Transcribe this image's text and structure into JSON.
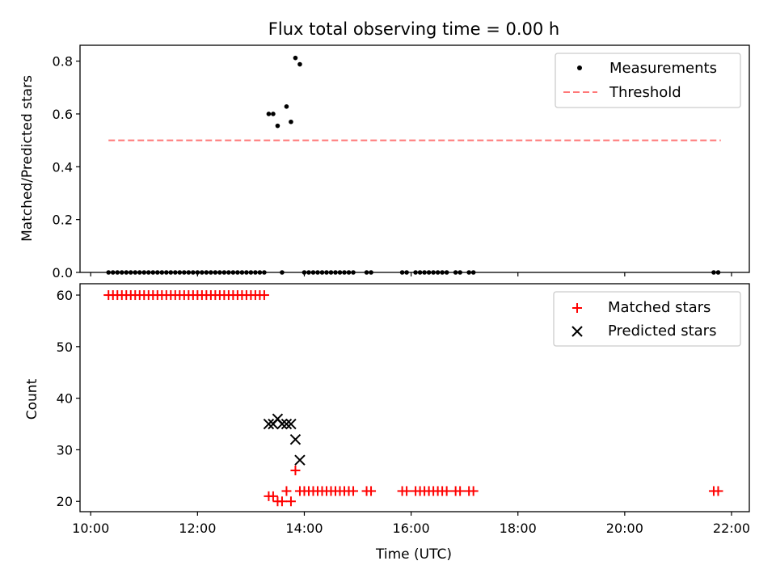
{
  "chart_data": [
    {
      "type": "scatter",
      "title": "Flux total observing time = 0.00 h",
      "ylabel": "Matched/Predicted stars",
      "ylim": [
        0.0,
        0.86
      ],
      "yticks": [
        0.0,
        0.2,
        0.4,
        0.6,
        0.8
      ],
      "ytick_labels": [
        "0.0",
        "0.2",
        "0.4",
        "0.6",
        "0.8"
      ],
      "xlim": [
        "09:48",
        "22:20"
      ],
      "xticks": [
        "10:00",
        "12:00",
        "14:00",
        "16:00",
        "18:00",
        "20:00",
        "22:00"
      ],
      "legend_position": "top-right",
      "series": [
        {
          "name": "Measurements",
          "marker": "dot",
          "color": "#000000",
          "x": [
            "10:20",
            "10:25",
            "10:30",
            "10:35",
            "10:40",
            "10:45",
            "10:50",
            "10:55",
            "11:00",
            "11:05",
            "11:10",
            "11:15",
            "11:20",
            "11:25",
            "11:30",
            "11:35",
            "11:40",
            "11:45",
            "11:50",
            "11:55",
            "12:00",
            "12:05",
            "12:10",
            "12:15",
            "12:20",
            "12:25",
            "12:30",
            "12:35",
            "12:40",
            "12:45",
            "12:50",
            "12:55",
            "13:00",
            "13:05",
            "13:10",
            "13:15",
            "13:20",
            "13:25",
            "13:30",
            "13:35",
            "13:40",
            "13:45",
            "13:50",
            "13:55",
            "14:00",
            "14:05",
            "14:10",
            "14:15",
            "14:20",
            "14:25",
            "14:30",
            "14:35",
            "14:40",
            "14:45",
            "14:50",
            "14:55",
            "15:10",
            "15:15",
            "15:50",
            "15:55",
            "16:05",
            "16:10",
            "16:15",
            "16:20",
            "16:25",
            "16:30",
            "16:35",
            "16:40",
            "16:50",
            "16:55",
            "17:05",
            "17:10",
            "21:40",
            "21:45"
          ],
          "y": [
            0,
            0,
            0,
            0,
            0,
            0,
            0,
            0,
            0,
            0,
            0,
            0,
            0,
            0,
            0,
            0,
            0,
            0,
            0,
            0,
            0,
            0,
            0,
            0,
            0,
            0,
            0,
            0,
            0,
            0,
            0,
            0,
            0,
            0,
            0,
            0,
            0.6,
            0.6,
            0.555,
            0,
            0.628,
            0.57,
            0.812,
            0.788,
            0,
            0,
            0,
            0,
            0,
            0,
            0,
            0,
            0,
            0,
            0,
            0,
            0,
            0,
            0,
            0,
            0,
            0,
            0,
            0,
            0,
            0,
            0,
            0,
            0,
            0,
            0,
            0,
            0,
            0
          ]
        },
        {
          "name": "Threshold",
          "type": "line",
          "style": "dashed",
          "color": "#ff7777",
          "x": [
            "10:20",
            "21:48"
          ],
          "y": [
            0.5,
            0.5
          ]
        }
      ]
    },
    {
      "type": "scatter",
      "xlabel": "Time (UTC)",
      "ylabel": "Count",
      "ylim": [
        18,
        62.2
      ],
      "yticks": [
        20,
        30,
        40,
        50,
        60
      ],
      "ytick_labels": [
        "20",
        "30",
        "40",
        "50",
        "60"
      ],
      "xlim": [
        "09:48",
        "22:20"
      ],
      "xticks": [
        "10:00",
        "12:00",
        "14:00",
        "16:00",
        "18:00",
        "20:00",
        "22:00"
      ],
      "xtick_labels": [
        "10:00",
        "12:00",
        "14:00",
        "16:00",
        "18:00",
        "20:00",
        "22:00"
      ],
      "legend_position": "top-right",
      "series": [
        {
          "name": "Matched stars",
          "marker": "plus",
          "color": "#ff0000",
          "x": [
            "10:20",
            "10:25",
            "10:30",
            "10:35",
            "10:40",
            "10:45",
            "10:50",
            "10:55",
            "11:00",
            "11:05",
            "11:10",
            "11:15",
            "11:20",
            "11:25",
            "11:30",
            "11:35",
            "11:40",
            "11:45",
            "11:50",
            "11:55",
            "12:00",
            "12:05",
            "12:10",
            "12:15",
            "12:20",
            "12:25",
            "12:30",
            "12:35",
            "12:40",
            "12:45",
            "12:50",
            "12:55",
            "13:00",
            "13:05",
            "13:10",
            "13:15",
            "13:20",
            "13:25",
            "13:30",
            "13:35",
            "13:40",
            "13:45",
            "13:50",
            "13:55",
            "14:00",
            "14:05",
            "14:10",
            "14:15",
            "14:20",
            "14:25",
            "14:30",
            "14:35",
            "14:40",
            "14:45",
            "14:50",
            "14:55",
            "15:10",
            "15:15",
            "15:50",
            "15:55",
            "16:05",
            "16:10",
            "16:15",
            "16:20",
            "16:25",
            "16:30",
            "16:35",
            "16:40",
            "16:50",
            "16:55",
            "17:05",
            "17:10",
            "21:40",
            "21:45"
          ],
          "y": [
            60,
            60,
            60,
            60,
            60,
            60,
            60,
            60,
            60,
            60,
            60,
            60,
            60,
            60,
            60,
            60,
            60,
            60,
            60,
            60,
            60,
            60,
            60,
            60,
            60,
            60,
            60,
            60,
            60,
            60,
            60,
            60,
            60,
            60,
            60,
            60,
            21,
            21,
            20,
            20,
            22,
            20,
            26,
            22,
            22,
            22,
            22,
            22,
            22,
            22,
            22,
            22,
            22,
            22,
            22,
            22,
            22,
            22,
            22,
            22,
            22,
            22,
            22,
            22,
            22,
            22,
            22,
            22,
            22,
            22,
            22,
            22,
            22,
            22
          ]
        },
        {
          "name": "Predicted stars",
          "marker": "x",
          "color": "#000000",
          "x": [
            "13:20",
            "13:25",
            "13:30",
            "13:35",
            "13:40",
            "13:45",
            "13:50",
            "13:55"
          ],
          "y": [
            35,
            35,
            36,
            35,
            35,
            35,
            32,
            28
          ]
        }
      ]
    }
  ]
}
